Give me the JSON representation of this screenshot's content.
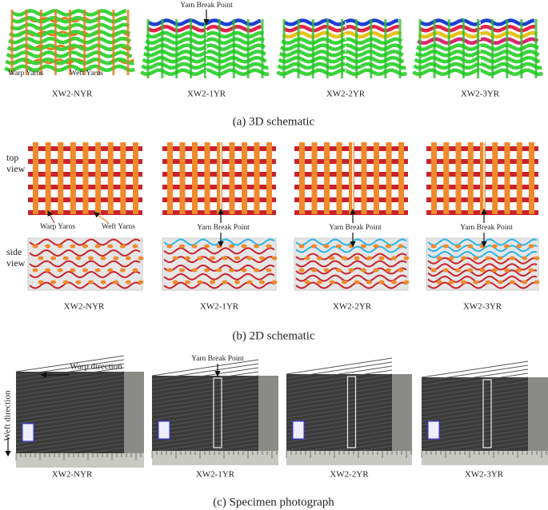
{
  "panel_a": {
    "caption": "(a) 3D schematic",
    "specimens": [
      {
        "label": "XW2-NYR",
        "warp_label": "Warp Yarns",
        "weft_label": "Weft Yarns"
      },
      {
        "label": "XW2-1YR",
        "break_label": "Yarn Break Point"
      },
      {
        "label": "XW2-2YR"
      },
      {
        "label": "XW2-3YR"
      }
    ]
  },
  "panel_b": {
    "caption": "(b) 2D schematic",
    "top_label": "top view",
    "side_label": "side view",
    "specimens": [
      {
        "label": "XW2-NYR",
        "warp_label": "Warp Yarns",
        "weft_label": "Weft Yarns"
      },
      {
        "label": "XW2-1YR",
        "break_label": "Yarn Break Point"
      },
      {
        "label": "XW2-2YR",
        "break_label": "Yarn Break Point"
      },
      {
        "label": "XW2-3YR",
        "break_label": "Yarn Break Point"
      }
    ]
  },
  "panel_c": {
    "caption": "(c) Specimen photograph",
    "warp_direction": "Warp direction",
    "weft_direction": "Weft direction",
    "specimens": [
      {
        "label": "XW2-NYR"
      },
      {
        "label": "XW2-1YR",
        "break_label": "Yarn Break Point"
      },
      {
        "label": "XW2-2YR"
      },
      {
        "label": "XW2-3YR"
      }
    ]
  }
}
